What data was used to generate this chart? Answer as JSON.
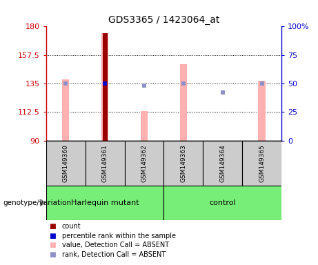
{
  "title": "GDS3365 / 1423064_at",
  "samples": [
    "GSM149360",
    "GSM149361",
    "GSM149362",
    "GSM149363",
    "GSM149364",
    "GSM149365"
  ],
  "ylim_left": [
    90,
    180
  ],
  "ylim_right": [
    0,
    100
  ],
  "yticks_left": [
    90,
    112.5,
    135,
    157.5,
    180
  ],
  "yticks_right": [
    0,
    25,
    50,
    75,
    100
  ],
  "left_color": "#cc0000",
  "right_color": "#0000cc",
  "pink_bar_color": "#ffb0b0",
  "lavender_dot_color": "#9090c8",
  "red_bar_color": "#990000",
  "blue_dot_color": "#0000cc",
  "pink_values": [
    138,
    175,
    113,
    150,
    90,
    137
  ],
  "lavender_rank_values": [
    50,
    50,
    48,
    50,
    42,
    50
  ],
  "red_value": 175,
  "red_index": 1,
  "blue_rank_value": 50,
  "blue_index": 1,
  "sample_box_color": "#cccccc",
  "group_color": "#77ee77",
  "group_defs": [
    {
      "name": "Harlequin mutant",
      "indices": [
        0,
        1,
        2
      ]
    },
    {
      "name": "control",
      "indices": [
        3,
        4,
        5
      ]
    }
  ],
  "legend_items": [
    {
      "color": "#990000",
      "label": "count"
    },
    {
      "color": "#0000cc",
      "label": "percentile rank within the sample"
    },
    {
      "color": "#ffb0b0",
      "label": "value, Detection Call = ABSENT"
    },
    {
      "color": "#9090c8",
      "label": "rank, Detection Call = ABSENT"
    }
  ],
  "pink_bar_width": 0.18,
  "red_bar_width": 0.12,
  "lav_marker_size": 5
}
